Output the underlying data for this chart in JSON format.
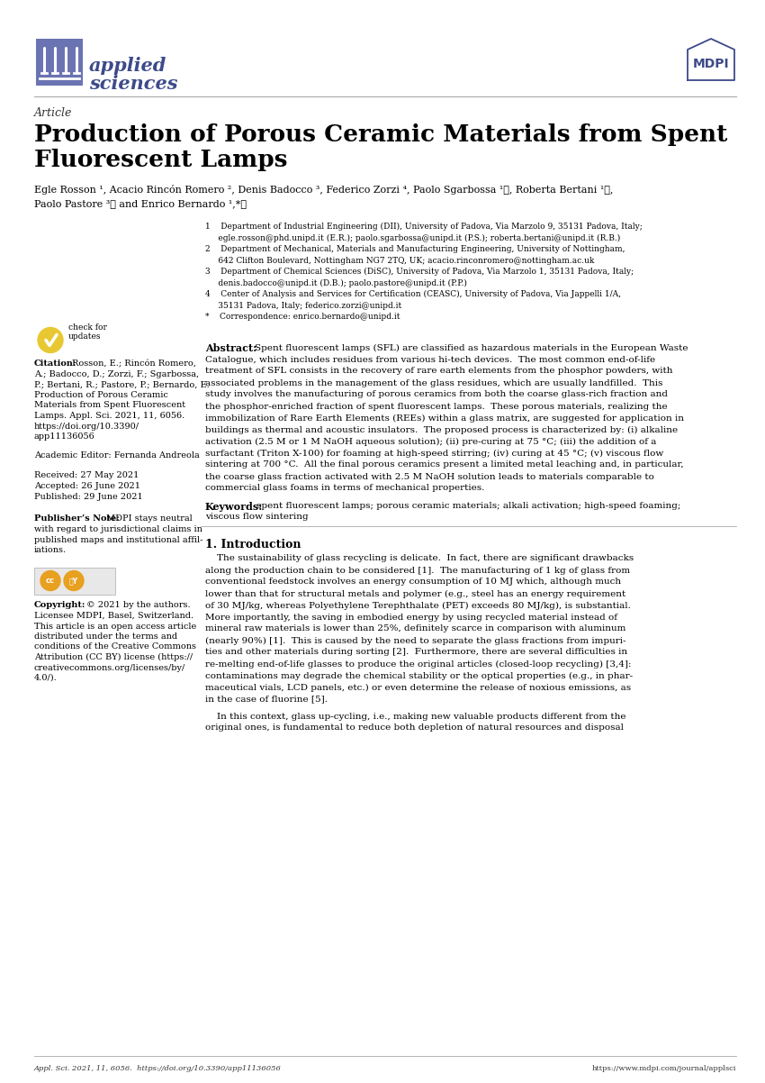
{
  "bg_color": "#ffffff",
  "text_color": "#000000",
  "header_color": "#3d4a8a",
  "accent_color": "#6b74b2",
  "line_color": "#aaaaaa",
  "journal_name_line1": "applied",
  "journal_name_line2": "sciences",
  "article_type": "Article",
  "title_line1": "Production of Porous Ceramic Materials from Spent",
  "title_line2": "Fluorescent Lamps",
  "authors_line1": "Egle Rosson ¹, Acacio Rincón Romero ², Denis Badocco ³, Federico Zorzi ⁴, Paolo Sgarbossa ¹ⓘ, Roberta Bertani ¹ⓘ,",
  "authors_line2": "Paolo Pastore ³ⓘ and Enrico Bernardo ¹,*ⓘ",
  "aff1": "1    Department of Industrial Engineering (DII), University of Padova, Via Marzolo 9, 35131 Padova, Italy;",
  "aff1b": "     egle.rosson@phd.unipd.it (E.R.); paolo.sgarbossa@unipd.it (P.S.); roberta.bertani@unipd.it (R.B.)",
  "aff2": "2    Department of Mechanical, Materials and Manufacturing Engineering, University of Nottingham,",
  "aff2b": "     642 Clifton Boulevard, Nottingham NG7 2TQ, UK; acacio.rinconromero@nottingham.ac.uk",
  "aff3": "3    Department of Chemical Sciences (DiSC), University of Padova, Via Marzolo 1, 35131 Padova, Italy;",
  "aff3b": "     denis.badocco@unipd.it (D.B.); paolo.pastore@unipd.it (P.P.)",
  "aff4": "4    Center of Analysis and Services for Certification (CEASC), University of Padova, Via Jappelli 1/A,",
  "aff4b": "     35131 Padova, Italy; federico.zorzi@unipd.it",
  "aff_star": "*    Correspondence: enrico.bernardo@unipd.it",
  "abstract_label": "Abstract:",
  "abstract_lines": [
    "Spent fluorescent lamps (SFL) are classified as hazardous materials in the European Waste",
    "Catalogue, which includes residues from various hi-tech devices.  The most common end-of-life",
    "treatment of SFL consists in the recovery of rare earth elements from the phosphor powders, with",
    "associated problems in the management of the glass residues, which are usually landfilled.  This",
    "study involves the manufacturing of porous ceramics from both the coarse glass-rich fraction and",
    "the phosphor-enriched fraction of spent fluorescent lamps.  These porous materials, realizing the",
    "immobilization of Rare Earth Elements (REEs) within a glass matrix, are suggested for application in",
    "buildings as thermal and acoustic insulators.  The proposed process is characterized by: (i) alkaline",
    "activation (2.5 M or 1 M NaOH aqueous solution); (ii) pre-curing at 75 °C; (iii) the addition of a",
    "surfactant (Triton X-100) for foaming at high-speed stirring; (iv) curing at 45 °C; (v) viscous flow",
    "sintering at 700 °C.  All the final porous ceramics present a limited metal leaching and, in particular,",
    "the coarse glass fraction activated with 2.5 M NaOH solution leads to materials comparable to",
    "commercial glass foams in terms of mechanical properties."
  ],
  "keywords_label": "Keywords:",
  "keywords_line1": "spent fluorescent lamps; porous ceramic materials; alkali activation; high-speed foaming;",
  "keywords_line2": "viscous flow sintering",
  "intro_heading": "1. Introduction",
  "intro_lines1": [
    "    The sustainability of glass recycling is delicate.  In fact, there are significant drawbacks",
    "along the production chain to be considered [1].  The manufacturing of 1 kg of glass from",
    "conventional feedstock involves an energy consumption of 10 MJ which, although much",
    "lower than that for structural metals and polymer (e.g., steel has an energy requirement",
    "of 30 MJ/kg, whereas Polyethylene Terephthalate (PET) exceeds 80 MJ/kg), is substantial.",
    "More importantly, the saving in embodied energy by using recycled material instead of",
    "mineral raw materials is lower than 25%, definitely scarce in comparison with aluminum",
    "(nearly 90%) [1].  This is caused by the need to separate the glass fractions from impuri-",
    "ties and other materials during sorting [2].  Furthermore, there are several difficulties in",
    "re-melting end-of-life glasses to produce the original articles (closed-loop recycling) [3,4]:",
    "contaminations may degrade the chemical stability or the optical properties (e.g., in phar-",
    "maceutical vials, LCD panels, etc.) or even determine the release of noxious emissions, as",
    "in the case of fluorine [5]."
  ],
  "intro_lines2": [
    "    In this context, glass up-cycling, i.e., making new valuable products different from the",
    "original ones, is fundamental to reduce both depletion of natural resources and disposal"
  ],
  "citation_lines": [
    "Citation:  Rosson, E.; Rincón Romero,",
    "A.; Badocco, D.; Zorzi, F.; Sgarbossa,",
    "P.; Bertani, R.; Pastore, P.; Bernardo, E.",
    "Production of Porous Ceramic",
    "Materials from Spent Fluorescent",
    "Lamps. Appl. Sci. 2021, 11, 6056.",
    "https://doi.org/10.3390/",
    "app11136056"
  ],
  "editor_line": "Academic Editor: Fernanda Andreola",
  "received": "Received: 27 May 2021",
  "accepted": "Accepted: 26 June 2021",
  "published": "Published: 29 June 2021",
  "publisher_note_lines": [
    "Publisher’s Note: MDPI stays neutral",
    "with regard to jurisdictional claims in",
    "published maps and institutional affil-",
    "iations."
  ],
  "copyright_lines": [
    "Copyright: © 2021 by the authors.",
    "Licensee MDPI, Basel, Switzerland.",
    "This article is an open access article",
    "distributed under the terms and",
    "conditions of the Creative Commons",
    "Attribution (CC BY) license (https://",
    "creativecommons.org/licenses/by/",
    "4.0/)."
  ],
  "footer_left": "Appl. Sci. 2021, 11, 6056.  https://doi.org/10.3390/app11136056",
  "footer_right": "https://www.mdpi.com/journal/applsci"
}
